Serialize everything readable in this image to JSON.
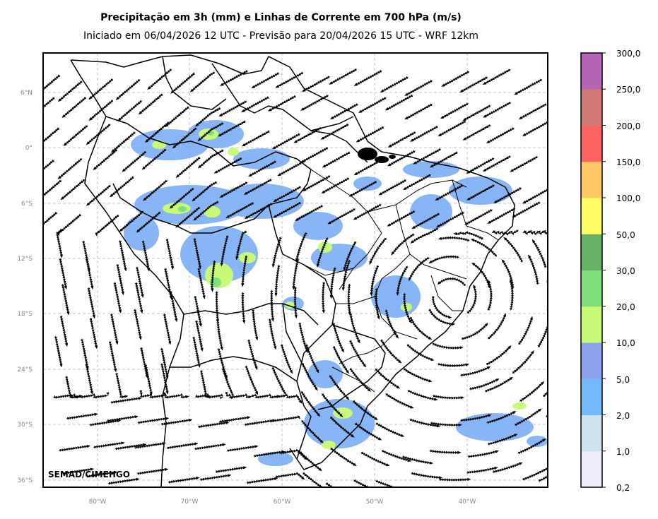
{
  "title": "Precipitação em 3h (mm) e Linhas de Corrente em 700 hPa (m/s)",
  "subtitle": "Iniciado em 06/04/2026 12 UTC - Previsão para 20/04/2026 15 UTC - WRF 12km",
  "credit": "SEMAD/CIMEHGO",
  "lat_labels": [
    "6°N",
    "0°",
    "6°S",
    "12°S",
    "18°S",
    "24°S",
    "30°S",
    "36°S"
  ],
  "lon_labels": [
    "80°W",
    "70°W",
    "60°W",
    "50°W",
    "40°W"
  ],
  "colorbar": {
    "labels": [
      "0,2",
      "1,0",
      "2,0",
      "5,0",
      "10,0",
      "20,0",
      "30,0",
      "50,0",
      "100,0",
      "150,0",
      "200,0",
      "250,0",
      "300,0"
    ],
    "colors": [
      "#eeeefa",
      "#cde4ee",
      "#74b9fb",
      "#8ea2ee",
      "#c8fa78",
      "#80e07c",
      "#68b268",
      "#fefe64",
      "#fec864",
      "#fe6464",
      "#d27878",
      "#b464b4"
    ]
  }
}
